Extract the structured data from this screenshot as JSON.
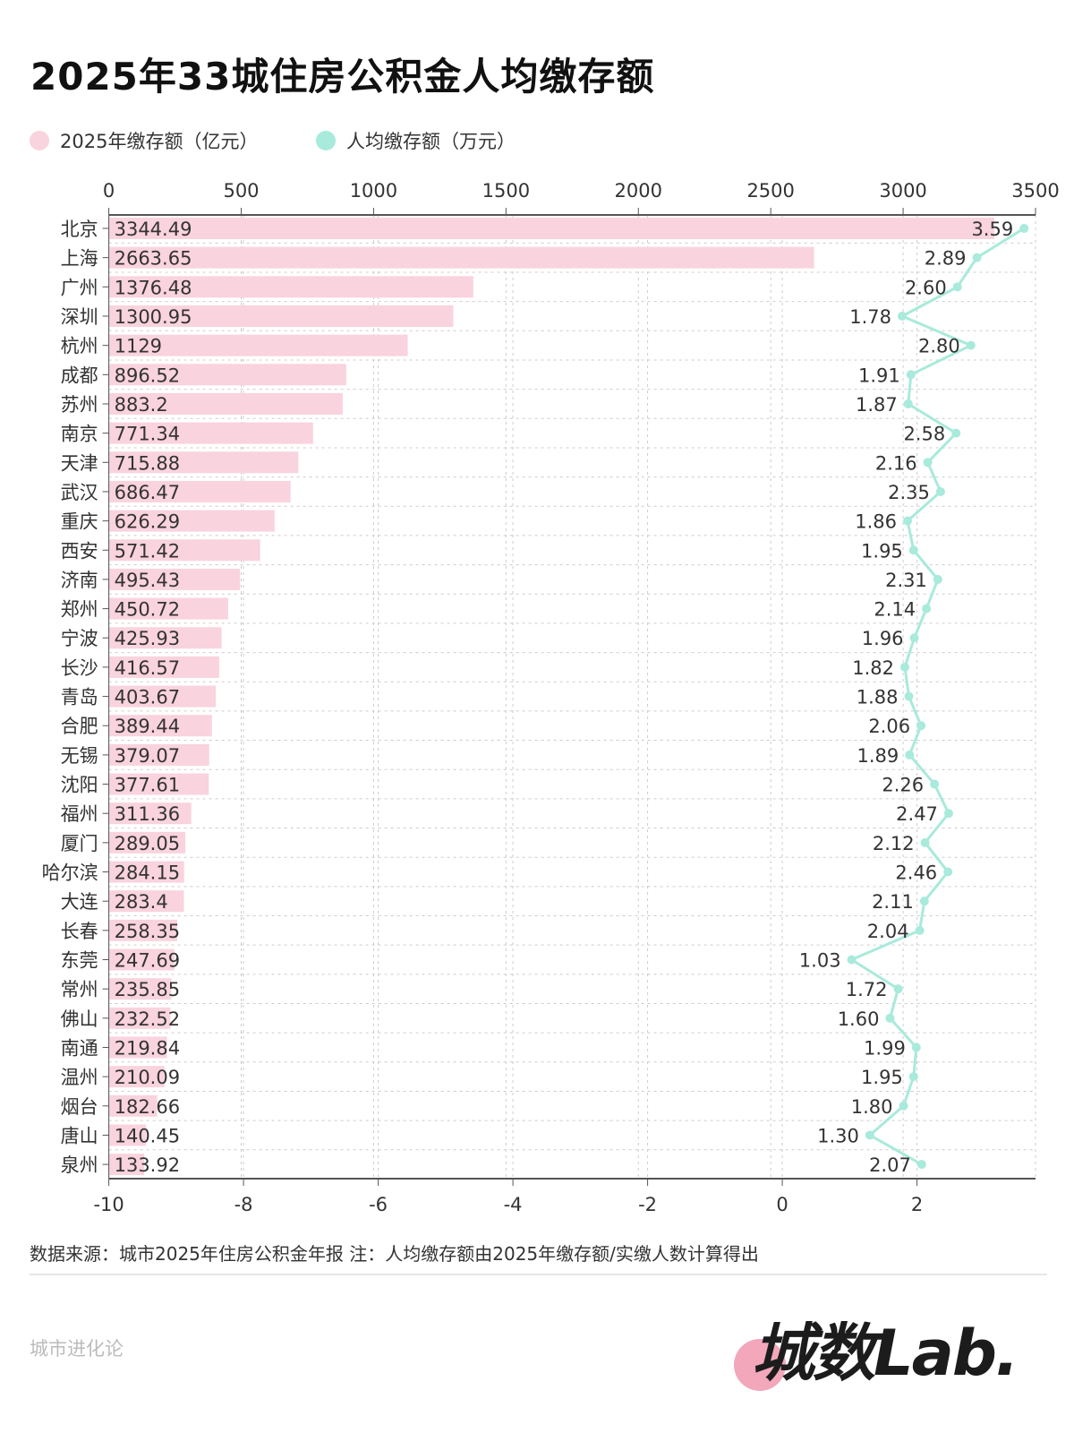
{
  "title": "2025年33城住房公积金人均缴存额",
  "legend": [
    {
      "label": "2025年缴存额（亿元）",
      "color": "#f9d3de"
    },
    {
      "label": "人均缴存额（万元）",
      "color": "#a8eadb"
    }
  ],
  "footnote": "数据来源：城市2025年住房公积金年报 注：人均缴存额由2025年缴存额/实缴人数计算得出",
  "brand": "城市进化论",
  "logo_text": "城数Lab.",
  "chart_data": {
    "type": "bar+line",
    "categories": [
      "北京",
      "上海",
      "广州",
      "深圳",
      "杭州",
      "成都",
      "苏州",
      "南京",
      "天津",
      "武汉",
      "重庆",
      "西安",
      "济南",
      "郑州",
      "宁波",
      "长沙",
      "青岛",
      "合肥",
      "无锡",
      "沈阳",
      "福州",
      "厦门",
      "哈尔滨",
      "大连",
      "长春",
      "东莞",
      "常州",
      "佛山",
      "南通",
      "温州",
      "烟台",
      "唐山",
      "泉州"
    ],
    "series": [
      {
        "name": "2025年缴存额（亿元）",
        "type": "bar",
        "axis": "top",
        "color": "#f9d3de",
        "labels": [
          "3344.49",
          "2663.65",
          "1376.48",
          "1300.95",
          "1129",
          "896.52",
          "883.2",
          "771.34",
          "715.88",
          "686.47",
          "626.29",
          "571.42",
          "495.43",
          "450.72",
          "425.93",
          "416.57",
          "403.67",
          "389.44",
          "379.07",
          "377.61",
          "311.36",
          "289.05",
          "284.15",
          "283.4",
          "258.35",
          "247.69",
          "235.85",
          "232.52",
          "219.84",
          "210.09",
          "182.66",
          "140.45",
          "133.92"
        ],
        "values": [
          3344.49,
          2663.65,
          1376.48,
          1300.95,
          1129,
          896.52,
          883.2,
          771.34,
          715.88,
          686.47,
          626.29,
          571.42,
          495.43,
          450.72,
          425.93,
          416.57,
          403.67,
          389.44,
          379.07,
          377.61,
          311.36,
          289.05,
          284.15,
          283.4,
          258.35,
          247.69,
          235.85,
          232.52,
          219.84,
          210.09,
          182.66,
          140.45,
          133.92
        ]
      },
      {
        "name": "人均缴存额（万元）",
        "type": "line",
        "axis": "bottom",
        "color": "#a8eadb",
        "labels": [
          "3.59",
          "2.89",
          "2.60",
          "1.78",
          "2.80",
          "1.91",
          "1.87",
          "2.58",
          "2.16",
          "2.35",
          "1.86",
          "1.95",
          "2.31",
          "2.14",
          "1.96",
          "1.82",
          "1.88",
          "2.06",
          "1.89",
          "2.26",
          "2.47",
          "2.12",
          "2.46",
          "2.11",
          "2.04",
          "1.03",
          "1.72",
          "1.60",
          "1.99",
          "1.95",
          "1.80",
          "1.30",
          "2.07"
        ],
        "values": [
          3.59,
          2.89,
          2.6,
          1.78,
          2.8,
          1.91,
          1.87,
          2.58,
          2.16,
          2.35,
          1.86,
          1.95,
          2.31,
          2.14,
          1.96,
          1.82,
          1.88,
          2.06,
          1.89,
          2.26,
          2.47,
          2.12,
          2.46,
          2.11,
          2.04,
          1.03,
          1.72,
          1.6,
          1.99,
          1.95,
          1.8,
          1.3,
          2.07
        ]
      }
    ],
    "top_axis": {
      "ticks": [
        "0",
        "500",
        "1000",
        "1500",
        "2000",
        "2500",
        "3000",
        "3500"
      ],
      "range": [
        0,
        3500
      ]
    },
    "bottom_axis": {
      "ticks": [
        "-10",
        "-8",
        "-6",
        "-4",
        "-2",
        "0",
        "2"
      ],
      "range": [
        -10,
        3.76
      ]
    },
    "grid": true
  }
}
